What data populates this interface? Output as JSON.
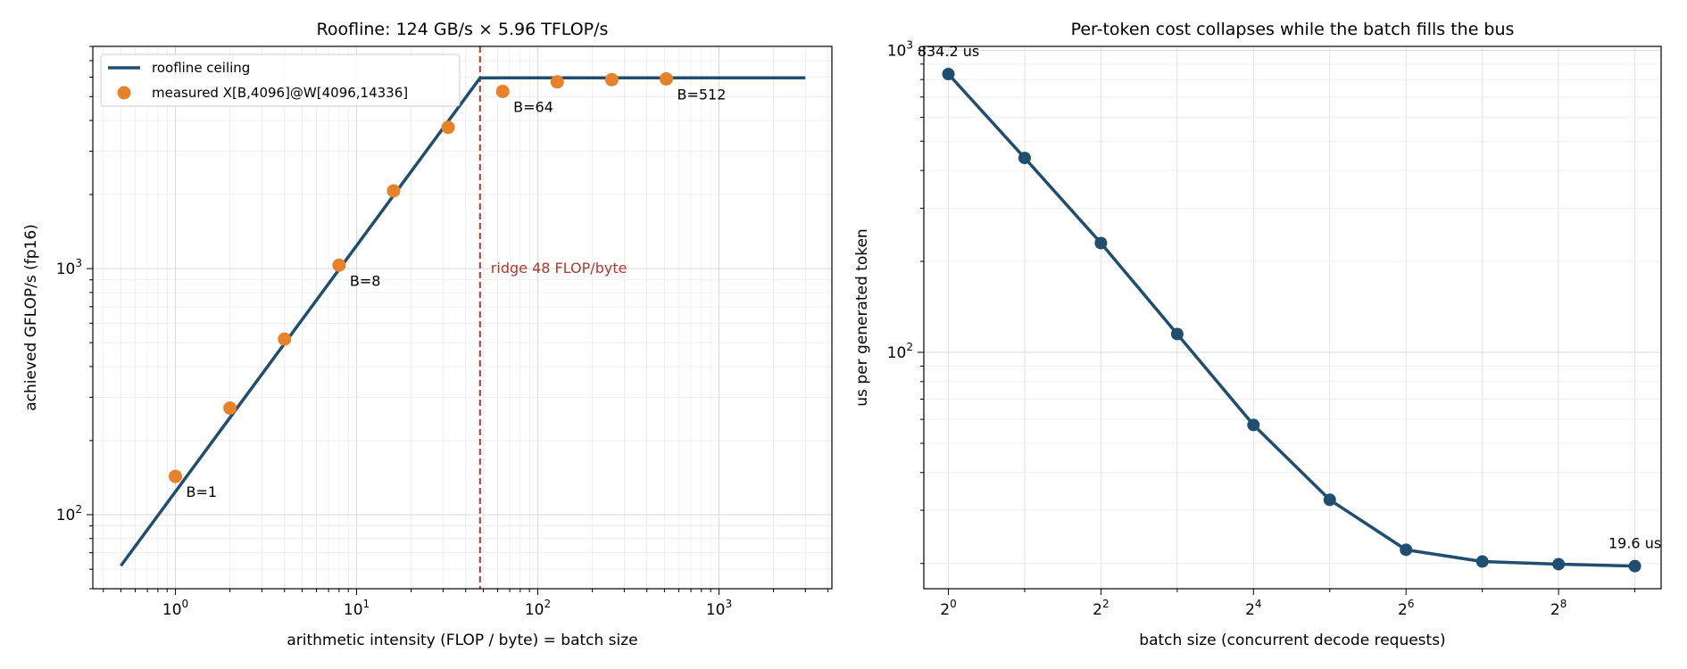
{
  "chart_data": [
    {
      "type": "line",
      "title": "Roofline: 124 GB/s  ×  5.96 TFLOP/s",
      "xlabel": "arithmetic intensity (FLOP / byte)  =  batch size",
      "ylabel": "achieved GFLOP/s (fp16)",
      "xscale": "log",
      "yscale": "log",
      "xlim": [
        0.35,
        4200
      ],
      "ylim": [
        50,
        8000
      ],
      "grid": true,
      "legend": "top-left",
      "x_ticks": [
        {
          "value": 1,
          "base": "10",
          "exp": "0"
        },
        {
          "value": 10,
          "base": "10",
          "exp": "1"
        },
        {
          "value": 100,
          "base": "10",
          "exp": "2"
        },
        {
          "value": 1000,
          "base": "10",
          "exp": "3"
        }
      ],
      "y_ticks": [
        {
          "value": 100,
          "base": "10",
          "exp": "2"
        },
        {
          "value": 1000,
          "base": "10",
          "exp": "3"
        }
      ],
      "series": [
        {
          "name": "roofline ceiling",
          "kind": "line",
          "color": "#1f4e6e",
          "x": [
            0.5,
            48,
            64,
            3000
          ],
          "y": [
            62,
            5952,
            5960,
            5960
          ]
        },
        {
          "name": "measured X[B,4096]@W[4096,14336]",
          "kind": "scatter",
          "color": "#e8822a",
          "x": [
            1,
            2,
            4,
            8,
            16,
            32,
            64,
            128,
            256,
            512
          ],
          "y": [
            143,
            271,
            517,
            1032,
            2070,
            3750,
            5250,
            5740,
            5860,
            5900
          ]
        }
      ],
      "vline": {
        "x": 48,
        "color": "#b03a2e",
        "label": "ridge 48 FLOP/byte",
        "label_y": 1000
      },
      "annotations": [
        {
          "text": "B=1",
          "x": 1,
          "y": 143
        },
        {
          "text": "B=8",
          "x": 8,
          "y": 1032
        },
        {
          "text": "B=64",
          "x": 64,
          "y": 5250
        },
        {
          "text": "B=512",
          "x": 512,
          "y": 5900
        }
      ]
    },
    {
      "type": "line",
      "title": "Per-token cost collapses while the batch fills the bus",
      "xlabel": "batch size (concurrent decode requests)",
      "ylabel": "us per generated token",
      "xscale": "log2",
      "yscale": "log",
      "xlim": [
        0.8,
        650
      ],
      "ylim": [
        16.5,
        1030
      ],
      "grid": true,
      "x_ticks": [
        {
          "value": 1,
          "base": "2",
          "exp": "0"
        },
        {
          "value": 4,
          "base": "2",
          "exp": "2"
        },
        {
          "value": 16,
          "base": "2",
          "exp": "4"
        },
        {
          "value": 64,
          "base": "2",
          "exp": "6"
        },
        {
          "value": 256,
          "base": "2",
          "exp": "8"
        }
      ],
      "y_ticks": [
        {
          "value": 100,
          "base": "10",
          "exp": "2"
        },
        {
          "value": 1000,
          "base": "10",
          "exp": "3"
        }
      ],
      "series": [
        {
          "kind": "line+markers",
          "color": "#1f4e6e",
          "x": [
            1,
            2,
            4,
            8,
            16,
            32,
            64,
            128,
            256,
            512
          ],
          "y": [
            834.2,
            440,
            230,
            115,
            57.5,
            32.5,
            22.2,
            20.3,
            19.9,
            19.6
          ]
        }
      ],
      "annotations": [
        {
          "text": "834.2 us",
          "x": 1,
          "y": 834.2
        },
        {
          "text": "19.6 us",
          "x": 512,
          "y": 19.6
        }
      ]
    }
  ]
}
